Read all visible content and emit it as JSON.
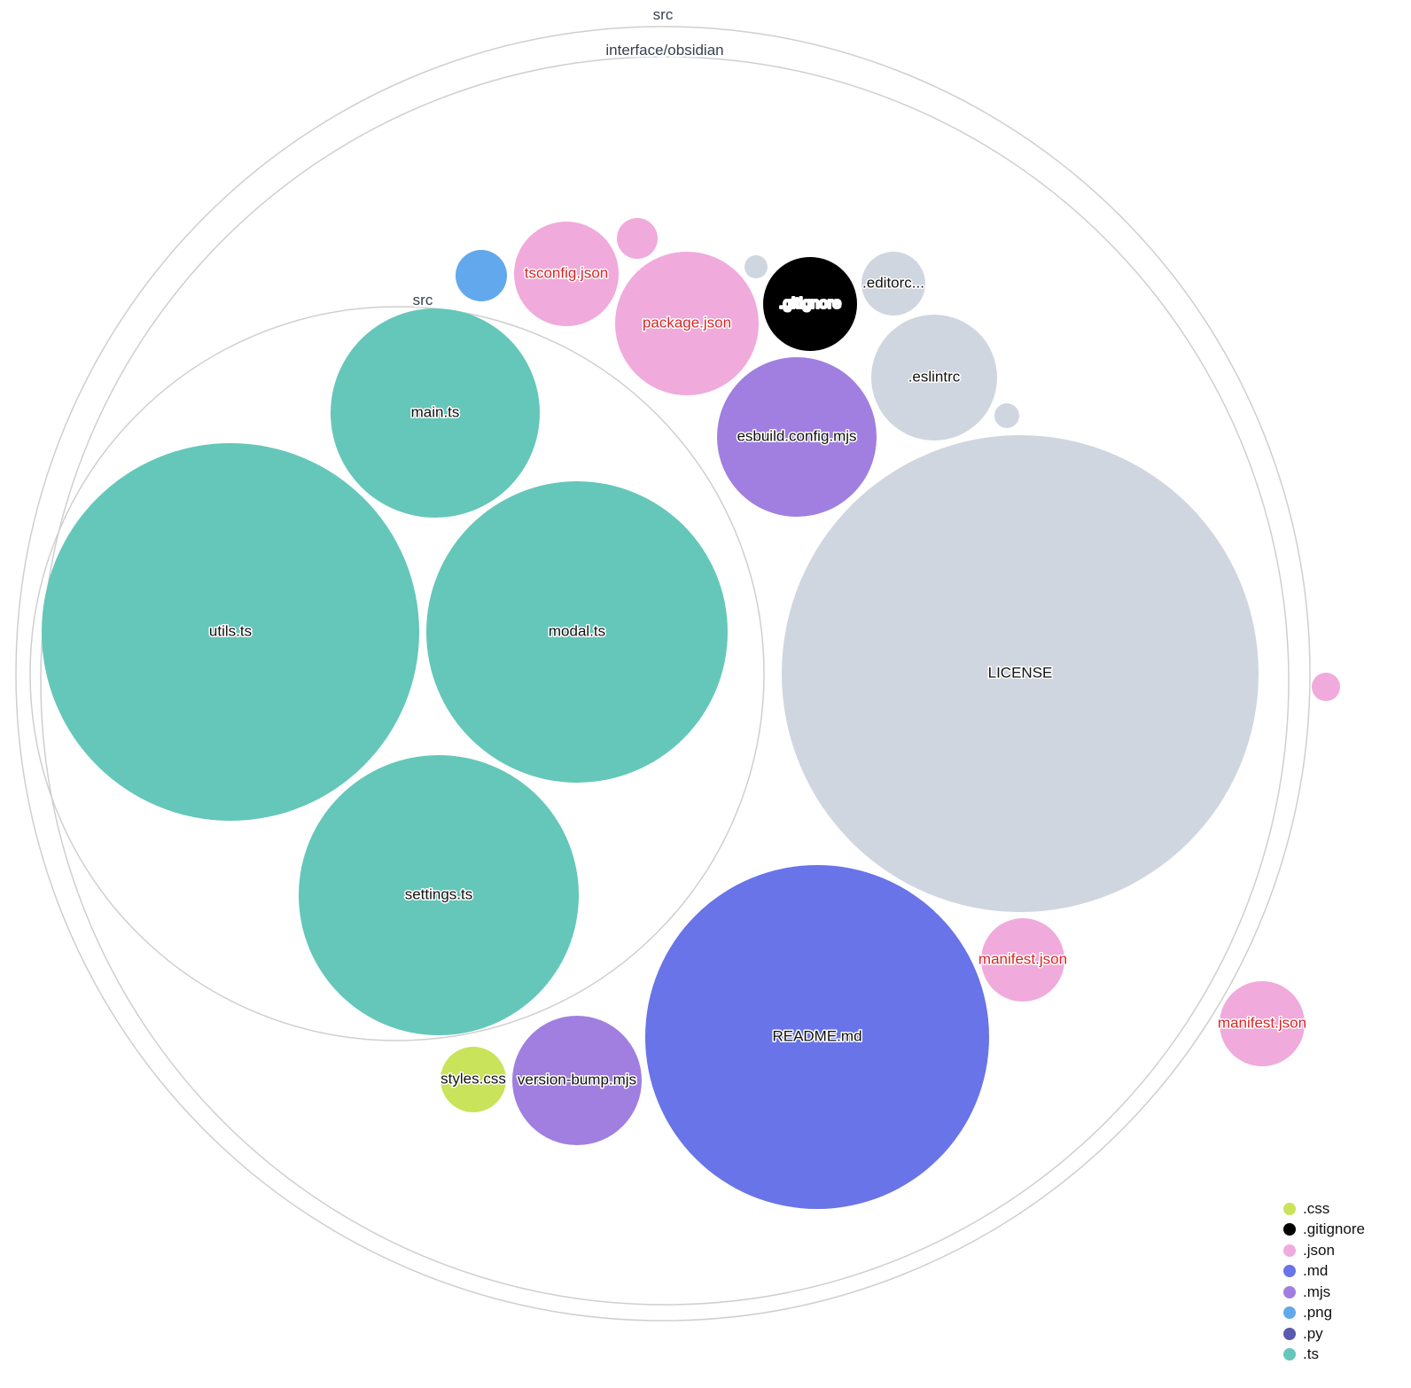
{
  "groups": [
    {
      "id": "root",
      "label": "src"
    },
    {
      "id": "obsidian",
      "label": "interface/obsidian"
    },
    {
      "id": "inner_src",
      "label": "src"
    }
  ],
  "files": [
    {
      "id": "utils",
      "label": "utils.ts",
      "ext": ".ts"
    },
    {
      "id": "modal",
      "label": "modal.ts",
      "ext": ".ts"
    },
    {
      "id": "main",
      "label": "main.ts",
      "ext": ".ts"
    },
    {
      "id": "settings",
      "label": "settings.ts",
      "ext": ".ts"
    },
    {
      "id": "license",
      "label": "LICENSE",
      "ext": ""
    },
    {
      "id": "readme",
      "label": "README.md",
      "ext": ".md"
    },
    {
      "id": "esbuild",
      "label": "esbuild.config.mjs",
      "ext": ".mjs"
    },
    {
      "id": "eslintrc",
      "label": ".eslintrc",
      "ext": ""
    },
    {
      "id": "package",
      "label": "package.json",
      "ext": ".json"
    },
    {
      "id": "tsconfig",
      "label": "tsconfig.json",
      "ext": ".json"
    },
    {
      "id": "gitignore",
      "label": ".gitignore",
      "ext": ".gitignore"
    },
    {
      "id": "editorconfig",
      "label": ".editorc...",
      "ext": ""
    },
    {
      "id": "small_gray_1",
      "label": "",
      "ext": ""
    },
    {
      "id": "small_gray_2",
      "label": "",
      "ext": ""
    },
    {
      "id": "small_json_1",
      "label": "",
      "ext": ".json"
    },
    {
      "id": "png",
      "label": "",
      "ext": ".png"
    },
    {
      "id": "manifest_inner",
      "label": "manifest.json",
      "ext": ".json"
    },
    {
      "id": "manifest_outer",
      "label": "manifest.json",
      "ext": ".json"
    },
    {
      "id": "small_json_2",
      "label": "",
      "ext": ".json"
    },
    {
      "id": "styles",
      "label": "styles.css",
      "ext": ".css"
    },
    {
      "id": "versionbump",
      "label": "version-bump.mjs",
      "ext": ".mjs"
    }
  ],
  "colors": {
    ".css": "#c9e35a",
    ".gitignore": "#000000",
    ".json": "#f0aadc",
    ".md": "#6874e8",
    ".mjs": "#a07fe0",
    ".png": "#62a8ec",
    ".py": "#5a5ab0",
    ".ts": "#64c7b9",
    "": "#d0d6e0",
    "json_label": "#d62728"
  },
  "legend": [
    {
      "label": ".css",
      "color": "#c9e35a"
    },
    {
      "label": ".gitignore",
      "color": "#000000"
    },
    {
      "label": ".json",
      "color": "#f0aadc"
    },
    {
      "label": ".md",
      "color": "#6874e8"
    },
    {
      "label": ".mjs",
      "color": "#a07fe0"
    },
    {
      "label": ".png",
      "color": "#62a8ec"
    },
    {
      "label": ".py",
      "color": "#5a5ab0"
    },
    {
      "label": ".ts",
      "color": "#64c7b9"
    }
  ]
}
